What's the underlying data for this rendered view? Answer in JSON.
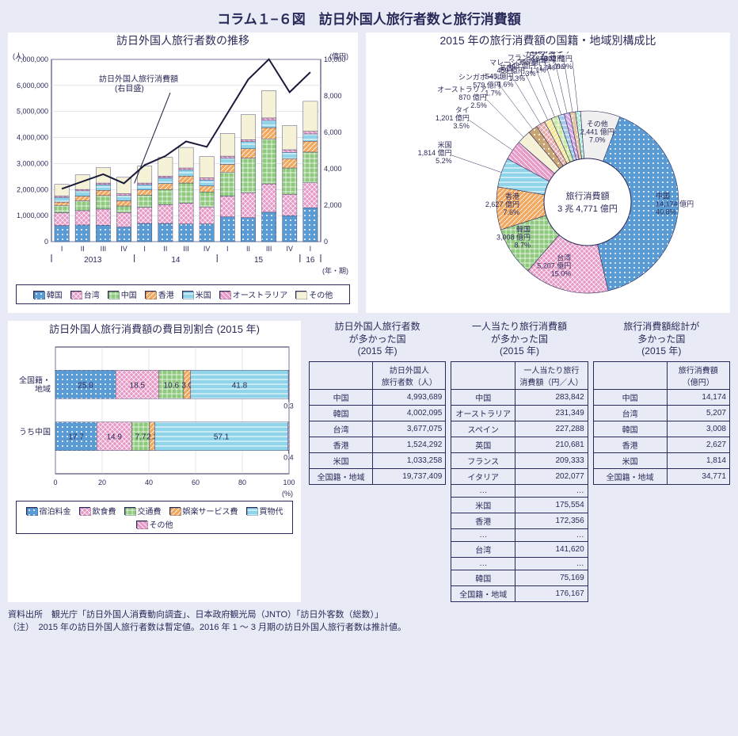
{
  "title": "コラム１−６図　訪日外国人旅行者数と旅行消費額",
  "bar_chart": {
    "title": "訪日外国人旅行者数の推移",
    "y1_label": "(人)",
    "y2_label": "(億円)",
    "x_label": "(年・期)",
    "line_label": "訪日外国人旅行消費額\n(右目盛)",
    "y1_max": 7000000,
    "y1_ticks": [
      0,
      1000000,
      2000000,
      3000000,
      4000000,
      5000000,
      6000000,
      7000000
    ],
    "y2_max": 10000,
    "y2_ticks": [
      0,
      2000,
      4000,
      6000,
      8000,
      10000
    ],
    "periods": [
      "I",
      "II",
      "III",
      "IV",
      "I",
      "II",
      "III",
      "IV",
      "I",
      "II",
      "III",
      "IV",
      "I"
    ],
    "year_groups": [
      {
        "label": "2013",
        "span": 4
      },
      {
        "label": "14",
        "span": 4
      },
      {
        "label": "15",
        "span": 4
      },
      {
        "label": "16",
        "span": 1
      }
    ],
    "series": [
      {
        "name": "韓国",
        "color": "#5a9bd4",
        "pattern": "dots"
      },
      {
        "name": "台湾",
        "color": "#e89ac7",
        "pattern": "cross"
      },
      {
        "name": "中国",
        "color": "#8fc97d",
        "pattern": "grid"
      },
      {
        "name": "香港",
        "color": "#f2a85e",
        "pattern": "diag"
      },
      {
        "name": "米国",
        "color": "#8fd4e8",
        "pattern": "hstripe"
      },
      {
        "name": "オーストラリア",
        "color": "#e89ac7",
        "pattern": "diag2"
      },
      {
        "name": "その他",
        "color": "#f5f2d8",
        "pattern": "none"
      }
    ],
    "stacks": [
      [
        620000,
        490000,
        280000,
        130000,
        180000,
        50000,
        450000
      ],
      [
        640000,
        550000,
        380000,
        180000,
        200000,
        55000,
        560000
      ],
      [
        630000,
        620000,
        520000,
        200000,
        220000,
        60000,
        590000
      ],
      [
        560000,
        560000,
        250000,
        200000,
        200000,
        70000,
        630000
      ],
      [
        700000,
        620000,
        470000,
        200000,
        200000,
        60000,
        650000
      ],
      [
        700000,
        720000,
        580000,
        230000,
        220000,
        65000,
        720000
      ],
      [
        680000,
        800000,
        770000,
        270000,
        240000,
        70000,
        790000
      ],
      [
        680000,
        650000,
        580000,
        230000,
        230000,
        80000,
        820000
      ],
      [
        950000,
        800000,
        920000,
        300000,
        240000,
        75000,
        870000
      ],
      [
        920000,
        960000,
        1330000,
        360000,
        270000,
        80000,
        960000
      ],
      [
        1130000,
        1090000,
        1730000,
        430000,
        280000,
        90000,
        1050000
      ],
      [
        1000000,
        820000,
        1010000,
        350000,
        250000,
        100000,
        930000
      ],
      [
        1300000,
        960000,
        1180000,
        420000,
        280000,
        100000,
        1150000
      ]
    ],
    "line_values": [
      2900,
      3300,
      3700,
      3200,
      4200,
      4700,
      5500,
      5200,
      7050,
      8900,
      10010,
      8200,
      9300
    ]
  },
  "pie": {
    "title": "2015 年の旅行消費額の国籍・地域別構成比",
    "center_label1": "旅行消費額",
    "center_label2": "3 兆 4,771 億円",
    "slices": [
      {
        "name": "中国",
        "val": "14,174 億円\n40.8%",
        "pct": 40.8,
        "color": "#5a9bd4",
        "pattern": "dots"
      },
      {
        "name": "台湾",
        "val": "5,207 億円\n15.0%",
        "pct": 15.0,
        "color": "#e89ac7",
        "pattern": "cross"
      },
      {
        "name": "韓国",
        "val": "3,008 億円\n8.7%",
        "pct": 8.7,
        "color": "#8fc97d",
        "pattern": "grid"
      },
      {
        "name": "香港",
        "val": "2,627 億円\n7.6%",
        "pct": 7.6,
        "color": "#f2a85e",
        "pattern": "diag"
      },
      {
        "name": "米国",
        "val": "1,814 億円\n5.2%",
        "pct": 5.2,
        "color": "#8fd4e8",
        "pattern": "hstripe"
      },
      {
        "name": "タイ",
        "val": "1,201 億円\n3.5%",
        "pct": 3.5,
        "color": "#e89ac7",
        "pattern": "diag2"
      },
      {
        "name": "オーストラリア",
        "val": "870 億円\n2.5%",
        "pct": 2.5,
        "color": "#f5f2d8",
        "pattern": "none"
      },
      {
        "name": "シンガポール",
        "val": "579 億円\n1.7%",
        "pct": 1.7,
        "color": "#c9a574",
        "pattern": "dots"
      },
      {
        "name": "英国",
        "val": "545 億円\n1.6%",
        "pct": 1.6,
        "color": "#e8a5a5",
        "pattern": "cross"
      },
      {
        "name": "マレーシア",
        "val": "459 億円\n1.3%",
        "pct": 1.3,
        "color": "#f5e89a",
        "pattern": "diag"
      },
      {
        "name": "フランス",
        "val": "448 億円\n1.3%",
        "pct": 1.3,
        "color": "#c9e8a5",
        "pattern": "grid"
      },
      {
        "name": "カナダ",
        "val": "395 億円\n1.1%",
        "pct": 1.1,
        "color": "#a5c9e8",
        "pattern": "hstripe"
      },
      {
        "name": "ベトナム",
        "val": "361 億円\n1.0%",
        "pct": 1.0,
        "color": "#d4a5e8",
        "pattern": "diag2"
      },
      {
        "name": "フィリピン",
        "val": "340 億円\n1.0%",
        "pct": 1.0,
        "color": "#e8c9a5",
        "pattern": "dots"
      },
      {
        "name": "インドネシア",
        "val": "302 億円\n0.9%",
        "pct": 0.9,
        "color": "#a5e8d4",
        "pattern": "cross"
      },
      {
        "name": "その他",
        "val": "2,441 億円\n7.0%",
        "pct": 7.0,
        "color": "#f0f0f0",
        "pattern": "none"
      }
    ]
  },
  "hbar": {
    "title": "訪日外国人旅行消費額の費目別割合 (2015 年)",
    "x_label": "(%)",
    "cats": [
      "全国籍・\n地域",
      "うち中国"
    ],
    "x_ticks": [
      0,
      20,
      40,
      60,
      80,
      100
    ],
    "series": [
      {
        "name": "宿泊料金",
        "color": "#5a9bd4",
        "pattern": "dots"
      },
      {
        "name": "飲食費",
        "color": "#e89ac7",
        "pattern": "cross"
      },
      {
        "name": "交通費",
        "color": "#8fc97d",
        "pattern": "grid"
      },
      {
        "name": "娯楽サービス費",
        "color": "#f2a85e",
        "pattern": "diag"
      },
      {
        "name": "買物代",
        "color": "#8fd4e8",
        "pattern": "hstripe"
      },
      {
        "name": "その他",
        "color": "#e89ac7",
        "pattern": "diag2"
      }
    ],
    "rows": [
      [
        25.8,
        18.5,
        10.6,
        3.0,
        41.8,
        0.3
      ],
      [
        17.7,
        14.9,
        7.7,
        2.2,
        57.1,
        0.4
      ]
    ]
  },
  "table1": {
    "title": "訪日外国人旅行者数\nが多かった国\n(2015 年)",
    "head": [
      "",
      "訪日外国人\n旅行者数（人）"
    ],
    "rows": [
      [
        "中国",
        "4,993,689"
      ],
      [
        "韓国",
        "4,002,095"
      ],
      [
        "台湾",
        "3,677,075"
      ],
      [
        "香港",
        "1,524,292"
      ],
      [
        "米国",
        "1,033,258"
      ]
    ],
    "total": [
      "全国籍・地域",
      "19,737,409"
    ]
  },
  "table2": {
    "title": "一人当たり旅行消費額\nが多かった国\n(2015 年)",
    "head": [
      "",
      "一人当たり旅行\n消費額（円／人）"
    ],
    "rows": [
      [
        "中国",
        "283,842"
      ],
      [
        "オーストラリア",
        "231,349"
      ],
      [
        "スペイン",
        "227,288"
      ],
      [
        "英国",
        "210,681"
      ],
      [
        "フランス",
        "209,333"
      ],
      [
        "イタリア",
        "202,077"
      ],
      [
        "…",
        "…"
      ],
      [
        "米国",
        "175,554"
      ],
      [
        "香港",
        "172,356"
      ],
      [
        "…",
        "…"
      ],
      [
        "台湾",
        "141,620"
      ],
      [
        "…",
        "…"
      ],
      [
        "韓国",
        "75,169"
      ]
    ],
    "total": [
      "全国籍・地域",
      "176,167"
    ]
  },
  "table3": {
    "title": "旅行消費額総計が\n多かった国\n(2015 年)",
    "head": [
      "",
      "旅行消費額\n（億円）"
    ],
    "rows": [
      [
        "中国",
        "14,174"
      ],
      [
        "台湾",
        "5,207"
      ],
      [
        "韓国",
        "3,008"
      ],
      [
        "香港",
        "2,627"
      ],
      [
        "米国",
        "1,814"
      ]
    ],
    "total": [
      "全国籍・地域",
      "34,771"
    ]
  },
  "footer1": "資料出所　観光庁「訪日外国人消費動向調査」、日本政府観光局（JNTO）「訪日外客数（総数）」",
  "footer2": "（注）　2015 年の訪日外国人旅行者数は暫定値。2016 年 1 〜 3 月期の訪日外国人旅行者数は推計値。"
}
